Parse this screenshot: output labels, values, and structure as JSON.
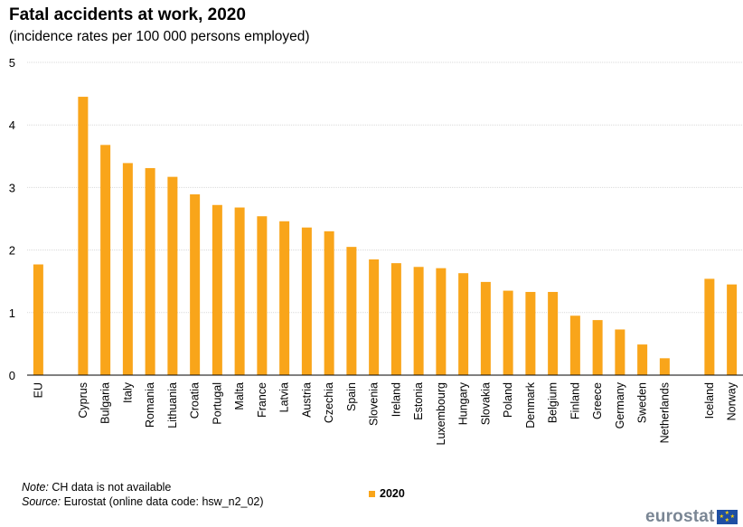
{
  "header": {
    "title": "Fatal accidents at work, 2020",
    "subtitle": "(incidence rates per 100 000 persons employed)"
  },
  "footer": {
    "note_label": "Note:",
    "note_text": " CH data is not available",
    "source_label": "Source:",
    "source_text": " Eurostat (online data code: hsw_n2_02)",
    "logo_text": "eurostat",
    "logo_icon": "eu-flag-icon"
  },
  "colors": {
    "bar": "#f9a51a",
    "grid": "#d9d9d9",
    "axis": "#000000"
  },
  "chart_data": {
    "type": "bar",
    "categories": [
      "EU",
      "",
      "Cyprus",
      "Bulgaria",
      "Italy",
      "Romania",
      "Lithuania",
      "Croatia",
      "Portugal",
      "Malta",
      "France",
      "Latvia",
      "Austria",
      "Czechia",
      "Spain",
      "Slovenia",
      "Ireland",
      "Estonia",
      "Luxembourg",
      "Hungary",
      "Slovakia",
      "Poland",
      "Denmark",
      "Belgium",
      "Finland",
      "Greece",
      "Germany",
      "Sweden",
      "Netherlands",
      "",
      "Iceland",
      "Norway"
    ],
    "series": [
      {
        "name": "2020",
        "values": [
          1.77,
          null,
          4.45,
          3.68,
          3.39,
          3.31,
          3.17,
          2.89,
          2.72,
          2.68,
          2.54,
          2.46,
          2.36,
          2.3,
          2.05,
          1.85,
          1.79,
          1.73,
          1.71,
          1.63,
          1.49,
          1.35,
          1.33,
          1.33,
          0.95,
          0.88,
          0.73,
          0.49,
          0.27,
          null,
          1.54,
          1.45
        ]
      }
    ],
    "ylim": [
      0,
      5
    ],
    "yticks": [
      0,
      1,
      2,
      3,
      4,
      5
    ],
    "xlabel": "",
    "ylabel": "",
    "grid": true,
    "legend": "bottom-center"
  }
}
